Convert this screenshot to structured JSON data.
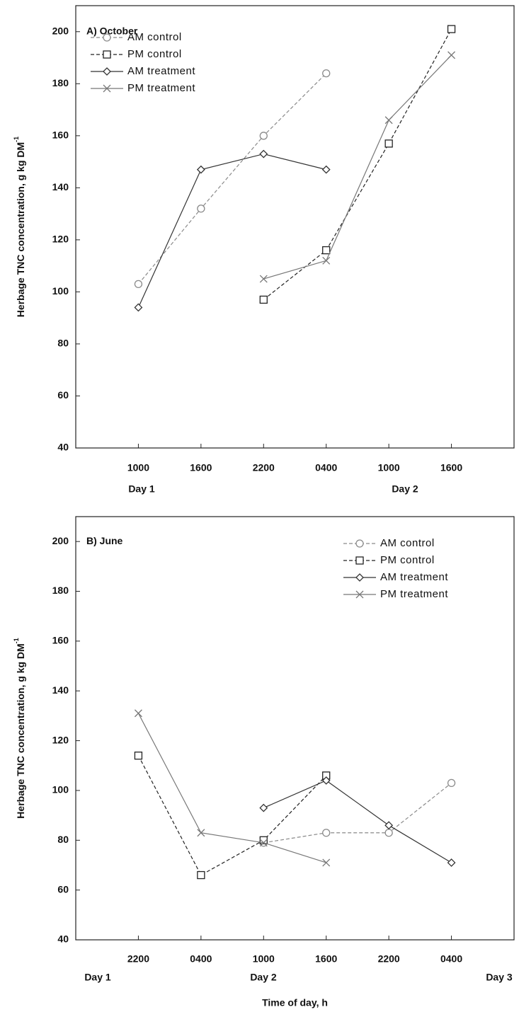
{
  "chart_data": [
    {
      "type": "line",
      "title": "A) October",
      "ylabel": "Herbage TNC concentration, g kg DM",
      "ylabel_superscript": "-1",
      "categories": [
        "1000",
        "1600",
        "2200",
        "0400",
        "1000",
        "1600"
      ],
      "day_labels": [
        "Day 1",
        "Day 2"
      ],
      "ylim": [
        40,
        210
      ],
      "yticks": [
        40,
        60,
        80,
        100,
        120,
        140,
        160,
        180,
        200
      ],
      "legend": "upper left",
      "series": [
        {
          "name": "AM control",
          "color": "#8a8a8a",
          "dash": true,
          "marker": "circle",
          "values": [
            103,
            132,
            160,
            184,
            null,
            null
          ]
        },
        {
          "name": "PM control",
          "color": "#222222",
          "dash": true,
          "marker": "square",
          "values": [
            null,
            null,
            97,
            116,
            157,
            201
          ]
        },
        {
          "name": "AM treatment",
          "color": "#333333",
          "dash": false,
          "marker": "diamond",
          "values": [
            94,
            147,
            153,
            147,
            null,
            null
          ]
        },
        {
          "name": "PM treatment",
          "color": "#777777",
          "dash": false,
          "marker": "x",
          "values": [
            null,
            null,
            105,
            112,
            166,
            191
          ]
        }
      ]
    },
    {
      "type": "line",
      "title": "B) June",
      "ylabel": "Herbage TNC concentration, g kg DM",
      "ylabel_superscript": "-1",
      "xlabel": "Time of day, h",
      "categories": [
        "2200",
        "0400",
        "1000",
        "1600",
        "2200",
        "0400"
      ],
      "day_labels": [
        "Day 1",
        "Day 2",
        "Day 3"
      ],
      "ylim": [
        40,
        210
      ],
      "yticks": [
        40,
        60,
        80,
        100,
        120,
        140,
        160,
        180,
        200
      ],
      "legend": "upper right",
      "series": [
        {
          "name": "AM control",
          "color": "#8a8a8a",
          "dash": true,
          "marker": "circle",
          "values": [
            null,
            null,
            79,
            83,
            83,
            103
          ]
        },
        {
          "name": "PM control",
          "color": "#222222",
          "dash": true,
          "marker": "square",
          "values": [
            114,
            66,
            80,
            106,
            null,
            null
          ]
        },
        {
          "name": "AM treatment",
          "color": "#333333",
          "dash": false,
          "marker": "diamond",
          "values": [
            null,
            null,
            93,
            104,
            86,
            71
          ]
        },
        {
          "name": "PM treatment",
          "color": "#777777",
          "dash": false,
          "marker": "x",
          "values": [
            131,
            83,
            79,
            71,
            null,
            null
          ]
        }
      ]
    }
  ]
}
